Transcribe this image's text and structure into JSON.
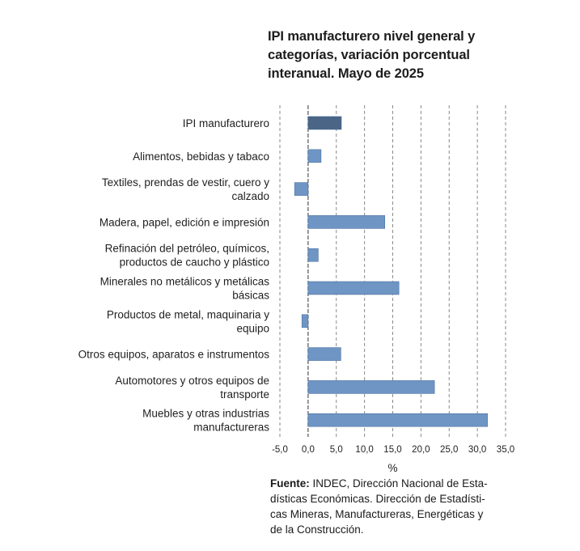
{
  "title_lines": [
    "IPI manufacturero nivel general y",
    "categorías, variación porcentual",
    "interanual. Mayo de 2025"
  ],
  "chart_data": {
    "type": "bar",
    "orientation": "horizontal",
    "title": "IPI manufacturero nivel general y categorías, variación porcentual interanual. Mayo de 2025",
    "xlabel": "%",
    "ylabel": "",
    "xlim": [
      -5,
      35
    ],
    "xticks": [
      -5,
      0,
      5,
      10,
      15,
      20,
      25,
      30,
      35
    ],
    "xtick_labels": [
      "-5,0",
      "0,0",
      "5,0",
      "10,0",
      "15,0",
      "20,0",
      "25,0",
      "30,0",
      "35,0"
    ],
    "grid": "vertical dashed",
    "categories": [
      "IPI manufacturero",
      "Alimentos, bebidas y tabaco",
      "Textiles, prendas de vestir, cuero y calzado",
      "Madera, papel, edición e impresión",
      "Refinación del petróleo, químicos, productos de caucho y plástico",
      "Minerales no metálicos y metálicas básicas",
      "Productos de metal, maquinaria y equipo",
      "Otros equipos, aparatos e instrumentos",
      "Automotores y otros equipos de transporte",
      "Muebles y otras industrias manufactureras"
    ],
    "category_lines": [
      [
        "IPI manufacturero"
      ],
      [
        "Alimentos, bebidas y tabaco"
      ],
      [
        "Textiles, prendas de vestir, cuero y",
        "calzado"
      ],
      [
        "Madera, papel, edición e impresión"
      ],
      [
        "Refinación del petróleo, químicos,",
        "productos de caucho y plástico"
      ],
      [
        "Minerales no metálicos y metálicas",
        "básicas"
      ],
      [
        "Productos de metal, maquinaria y",
        "equipo"
      ],
      [
        "Otros equipos, aparatos e instrumentos"
      ],
      [
        "Automotores y otros equipos de",
        "transporte"
      ],
      [
        "Muebles y otras industrias",
        "manufactureras"
      ]
    ],
    "values": [
      5.9,
      2.3,
      -2.4,
      13.6,
      1.8,
      16.1,
      -1.1,
      5.8,
      22.4,
      31.8
    ],
    "colors": {
      "highlight": "#4a6585",
      "bar": "#6e95c4",
      "bar_stroke": "#4f73a0",
      "grid": "#8a8a8a",
      "axis": "#555555"
    }
  },
  "source": {
    "label": "Fuente:",
    "first_line_rest": " INDEC, Dirección Nacional de Esta-",
    "other_lines": [
      "dísticas Económicas. Dirección de Estadísti-",
      "cas Mineras, Manufactureras, Energéticas y",
      "de la Construcción."
    ]
  }
}
